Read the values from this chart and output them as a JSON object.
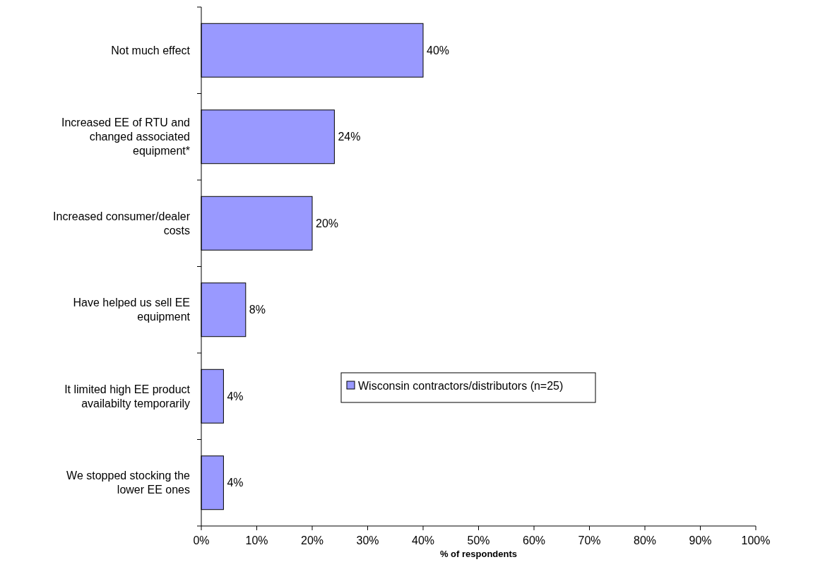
{
  "chart_data": {
    "type": "bar",
    "orientation": "horizontal",
    "xlabel": "% of respondents",
    "categories": [
      "Not much effect",
      "Increased EE of RTU and changed associated equipment*",
      "Increased consumer/dealer costs",
      "Have helped us sell EE equipment",
      "It limited high EE product availabilty temporarily",
      "We stopped stocking the lower EE ones"
    ],
    "series": [
      {
        "name": "Wisconsin contractors/distributors (n=25)",
        "color": "#9999ff",
        "values": [
          40,
          24,
          20,
          8,
          4,
          4
        ]
      }
    ],
    "value_labels": [
      "40%",
      "24%",
      "20%",
      "8%",
      "4%",
      "4%"
    ],
    "xlim": [
      0,
      100
    ],
    "xticks": [
      {
        "value": 0,
        "label": "0%"
      },
      {
        "value": 10,
        "label": "10%"
      },
      {
        "value": 20,
        "label": "20%"
      },
      {
        "value": 30,
        "label": "30%"
      },
      {
        "value": 40,
        "label": "40%"
      },
      {
        "value": 50,
        "label": "50%"
      },
      {
        "value": 60,
        "label": "60%"
      },
      {
        "value": 70,
        "label": "70%"
      },
      {
        "value": 80,
        "label": "80%"
      },
      {
        "value": 90,
        "label": "90%"
      },
      {
        "value": 100,
        "label": "100%"
      }
    ],
    "grid": false,
    "legend": "center"
  }
}
